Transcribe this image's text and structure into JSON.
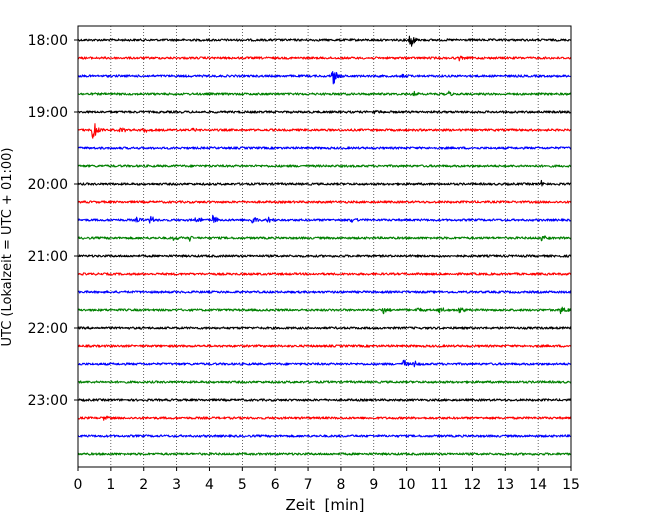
{
  "chart_data": {
    "type": "line",
    "title": "",
    "xlabel": "Zeit  [min]",
    "ylabel": "UTC (Lokalzeit = UTC + 01:00)",
    "xlim": [
      0,
      15
    ],
    "x_ticks": [
      "0",
      "1",
      "2",
      "3",
      "4",
      "5",
      "6",
      "7",
      "8",
      "9",
      "10",
      "11",
      "12",
      "13",
      "14",
      "15"
    ],
    "y_ticks": [
      "18:00",
      "19:00",
      "20:00",
      "21:00",
      "22:00",
      "23:00"
    ],
    "grid": "vertical dotted",
    "colors": [
      "#000000",
      "#ff0000",
      "#0000ff",
      "#008000"
    ],
    "trace_interval_min": 15,
    "first_trace": "18:00",
    "series": [
      {
        "start": "18:00",
        "color": "#000000",
        "events": [
          {
            "t": 10.1,
            "amp": 1.0
          }
        ]
      },
      {
        "start": "18:15",
        "color": "#ff0000",
        "events": [
          {
            "t": 11.6,
            "amp": 0.25
          }
        ]
      },
      {
        "start": "18:30",
        "color": "#0000ff",
        "events": [
          {
            "t": 7.75,
            "amp": 1.0
          },
          {
            "t": 9.9,
            "amp": 0.3
          }
        ]
      },
      {
        "start": "18:45",
        "color": "#008000",
        "events": [
          {
            "t": 10.2,
            "amp": 0.3
          },
          {
            "t": 11.3,
            "amp": 0.3
          }
        ]
      },
      {
        "start": "19:00",
        "color": "#000000",
        "events": [
          {
            "t": 9.0,
            "amp": 0.2
          }
        ]
      },
      {
        "start": "19:15",
        "color": "#ff0000",
        "events": [
          {
            "t": 0.45,
            "amp": 1.3
          },
          {
            "t": 1.3,
            "amp": 0.3
          },
          {
            "t": 2.0,
            "amp": 0.3
          },
          {
            "t": 3.5,
            "amp": 0.3
          }
        ]
      },
      {
        "start": "19:30",
        "color": "#0000ff",
        "events": []
      },
      {
        "start": "19:45",
        "color": "#008000",
        "events": []
      },
      {
        "start": "20:00",
        "color": "#000000",
        "events": [
          {
            "t": 14.1,
            "amp": 0.35
          }
        ]
      },
      {
        "start": "20:15",
        "color": "#ff0000",
        "events": []
      },
      {
        "start": "20:30",
        "color": "#0000ff",
        "events": [
          {
            "t": 1.8,
            "amp": 0.3
          },
          {
            "t": 2.2,
            "amp": 0.45
          },
          {
            "t": 3.6,
            "amp": 0.45
          },
          {
            "t": 4.1,
            "amp": 0.5
          },
          {
            "t": 5.3,
            "amp": 0.4
          },
          {
            "t": 5.8,
            "amp": 0.35
          },
          {
            "t": 8.3,
            "amp": 0.4
          }
        ]
      },
      {
        "start": "20:45",
        "color": "#008000",
        "events": [
          {
            "t": 2.9,
            "amp": 0.3
          },
          {
            "t": 3.4,
            "amp": 0.3
          },
          {
            "t": 14.1,
            "amp": 0.35
          }
        ]
      },
      {
        "start": "21:00",
        "color": "#000000",
        "events": []
      },
      {
        "start": "21:15",
        "color": "#ff0000",
        "events": []
      },
      {
        "start": "21:30",
        "color": "#0000ff",
        "events": []
      },
      {
        "start": "21:45",
        "color": "#008000",
        "events": [
          {
            "t": 9.3,
            "amp": 0.4
          },
          {
            "t": 10.3,
            "amp": 0.3
          },
          {
            "t": 11.0,
            "amp": 0.35
          },
          {
            "t": 11.6,
            "amp": 0.3
          },
          {
            "t": 14.7,
            "amp": 0.6
          }
        ]
      },
      {
        "start": "22:00",
        "color": "#000000",
        "events": []
      },
      {
        "start": "22:15",
        "color": "#ff0000",
        "events": []
      },
      {
        "start": "22:30",
        "color": "#0000ff",
        "events": [
          {
            "t": 9.9,
            "amp": 0.5
          },
          {
            "t": 10.2,
            "amp": 0.4
          }
        ]
      },
      {
        "start": "22:45",
        "color": "#008000",
        "events": []
      },
      {
        "start": "23:00",
        "color": "#000000",
        "events": []
      },
      {
        "start": "23:15",
        "color": "#ff0000",
        "events": [
          {
            "t": 0.8,
            "amp": 0.3
          }
        ]
      },
      {
        "start": "23:30",
        "color": "#0000ff",
        "events": []
      },
      {
        "start": "23:45",
        "color": "#008000",
        "events": []
      }
    ]
  }
}
